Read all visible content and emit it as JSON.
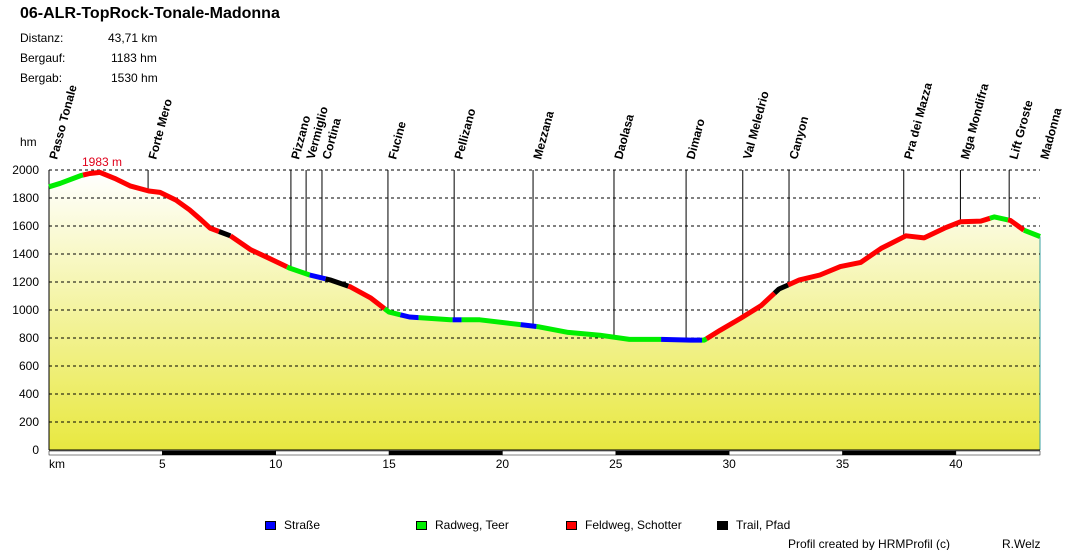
{
  "header": {
    "title": "06-ALR-TopRock-Tonale-Madonna",
    "stats": [
      {
        "label": "Distanz:",
        "value": "43,71 km"
      },
      {
        "label": "Bergauf:",
        "value": "1183 hm"
      },
      {
        "label": "Bergab:",
        "value": "1530 hm"
      }
    ]
  },
  "chart_data": {
    "type": "line",
    "title": "06-ALR-TopRock-Tonale-Madonna",
    "xlabel": "km",
    "ylabel": "hm",
    "xlim": [
      0,
      43.71
    ],
    "ylim": [
      0,
      2000
    ],
    "xticks": [
      5,
      10,
      15,
      20,
      25,
      30,
      35,
      40
    ],
    "yticks": [
      0,
      200,
      400,
      600,
      800,
      1000,
      1200,
      1400,
      1600,
      1800,
      2000
    ],
    "grid": "horizontal dashed",
    "max_label": "1983 m",
    "max_km": 2.25,
    "profile": [
      [
        0,
        1880
      ],
      [
        0.5,
        1905
      ],
      [
        1.4,
        1960
      ],
      [
        1.8,
        1975
      ],
      [
        2.25,
        1983
      ],
      [
        2.9,
        1940
      ],
      [
        3.6,
        1885
      ],
      [
        4.4,
        1850
      ],
      [
        4.9,
        1840
      ],
      [
        5.6,
        1785
      ],
      [
        6.2,
        1715
      ],
      [
        6.7,
        1645
      ],
      [
        7.1,
        1585
      ],
      [
        8,
        1530
      ],
      [
        8.9,
        1430
      ],
      [
        9.7,
        1370
      ],
      [
        10.6,
        1300
      ],
      [
        11.5,
        1250
      ],
      [
        12.4,
        1215
      ],
      [
        13.3,
        1165
      ],
      [
        14.2,
        1085
      ],
      [
        15,
        985
      ],
      [
        15.9,
        950
      ],
      [
        16.8,
        940
      ],
      [
        17.7,
        930
      ],
      [
        19,
        930
      ],
      [
        20.3,
        905
      ],
      [
        21.6,
        880
      ],
      [
        22.9,
        840
      ],
      [
        24.3,
        820
      ],
      [
        25.6,
        790
      ],
      [
        26.9,
        790
      ],
      [
        28.3,
        785
      ],
      [
        28.9,
        785
      ],
      [
        29.6,
        855
      ],
      [
        30.5,
        940
      ],
      [
        31.4,
        1030
      ],
      [
        32.2,
        1150
      ],
      [
        33.1,
        1215
      ],
      [
        34,
        1250
      ],
      [
        34.9,
        1310
      ],
      [
        35.8,
        1340
      ],
      [
        36.7,
        1440
      ],
      [
        37.8,
        1530
      ],
      [
        38.6,
        1515
      ],
      [
        39.5,
        1585
      ],
      [
        40.2,
        1630
      ],
      [
        41.1,
        1635
      ],
      [
        41.7,
        1665
      ],
      [
        42.4,
        1640
      ],
      [
        43,
        1570
      ],
      [
        43.71,
        1525
      ]
    ],
    "surface_segments": [
      [
        0,
        1.5,
        "Radweg, Teer"
      ],
      [
        1.5,
        7.5,
        "Feldweg, Schotter"
      ],
      [
        7.5,
        8,
        "Trail, Pfad"
      ],
      [
        8,
        10.5,
        "Feldweg, Schotter"
      ],
      [
        10.5,
        11.5,
        "Radweg, Teer"
      ],
      [
        11.5,
        12.2,
        "Straße"
      ],
      [
        12.2,
        13.2,
        "Trail, Pfad"
      ],
      [
        13.2,
        14.8,
        "Feldweg, Schotter"
      ],
      [
        14.8,
        15.5,
        "Radweg, Teer"
      ],
      [
        15.5,
        16.3,
        "Straße"
      ],
      [
        16.3,
        17.8,
        "Radweg, Teer"
      ],
      [
        17.8,
        18.2,
        "Straße"
      ],
      [
        18.2,
        20.8,
        "Radweg, Teer"
      ],
      [
        20.8,
        21.5,
        "Straße"
      ],
      [
        21.5,
        27,
        "Radweg, Teer"
      ],
      [
        27,
        28.8,
        "Straße"
      ],
      [
        28.8,
        29,
        "Radweg, Teer"
      ],
      [
        29,
        32,
        "Feldweg, Schotter"
      ],
      [
        32,
        32.6,
        "Trail, Pfad"
      ],
      [
        32.6,
        41.5,
        "Feldweg, Schotter"
      ],
      [
        41.5,
        42.3,
        "Radweg, Teer"
      ],
      [
        42.3,
        43,
        "Feldweg, Schotter"
      ],
      [
        43,
        43.71,
        "Radweg, Teer"
      ]
    ],
    "waypoints": [
      {
        "name": "Passo Tonale",
        "km": 0
      },
      {
        "name": "Forte Mero",
        "km": 4.37
      },
      {
        "name": "Pizzano",
        "km": 10.67
      },
      {
        "name": "Vermiglio",
        "km": 11.34
      },
      {
        "name": "Cortina",
        "km": 12.04
      },
      {
        "name": "Fucine",
        "km": 14.95
      },
      {
        "name": "Pellizano",
        "km": 17.87
      },
      {
        "name": "Mezzana",
        "km": 21.35
      },
      {
        "name": "Daolasa",
        "km": 24.92
      },
      {
        "name": "Dimaro",
        "km": 28.1
      },
      {
        "name": "Val Meledrio",
        "km": 30.6
      },
      {
        "name": "Canyon",
        "km": 32.64
      },
      {
        "name": "Pra dei Mazza",
        "km": 37.7
      },
      {
        "name": "Mga Mondifra",
        "km": 40.2
      },
      {
        "name": "Lift Groste",
        "km": 42.35
      },
      {
        "name": "Madonna",
        "km": 43.71
      }
    ],
    "legend": [
      {
        "name": "Straße",
        "color": "#0000ff"
      },
      {
        "name": "Radweg, Teer",
        "color": "#00ee00"
      },
      {
        "name": "Feldweg, Schotter",
        "color": "#ff0000"
      },
      {
        "name": "Trail, Pfad",
        "color": "#000000"
      }
    ],
    "fill_colors": {
      "top": "#ffffff",
      "bottom": "#e8e840"
    }
  },
  "footer": {
    "credit": "Profil created by HRMProfil (c)",
    "author": "R.Welz"
  }
}
